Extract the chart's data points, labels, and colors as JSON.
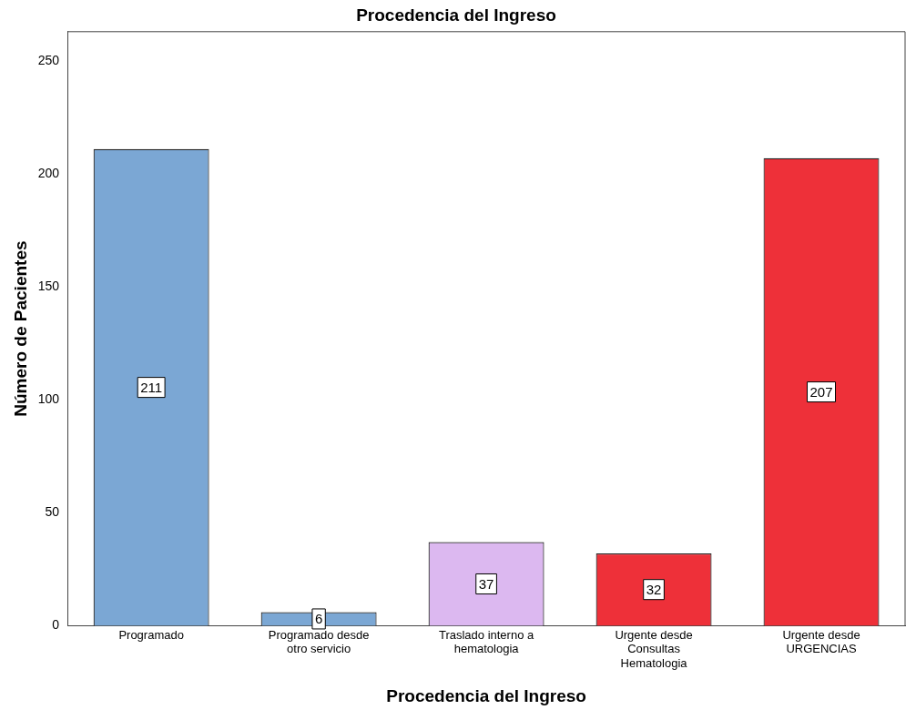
{
  "chart_data": {
    "type": "bar",
    "title": "Procedencia del Ingreso",
    "xlabel": "Procedencia del Ingreso",
    "ylabel": "Número de Pacientes",
    "categories": [
      "Programado",
      "Programado desde otro servicio",
      "Traslado interno a hematologia",
      "Urgente desde Consultas Hematologia",
      "Urgente desde URGENCIAS"
    ],
    "values": [
      211,
      6,
      37,
      32,
      207
    ],
    "colors": [
      "#7ba7d4",
      "#7ba7d4",
      "#dcb8f0",
      "#ee3039",
      "#ee3039"
    ],
    "ylim": [
      0,
      263
    ],
    "yticks": [
      0,
      50,
      100,
      150,
      200,
      250
    ],
    "grid": false,
    "legend": false,
    "data_labels": true
  }
}
